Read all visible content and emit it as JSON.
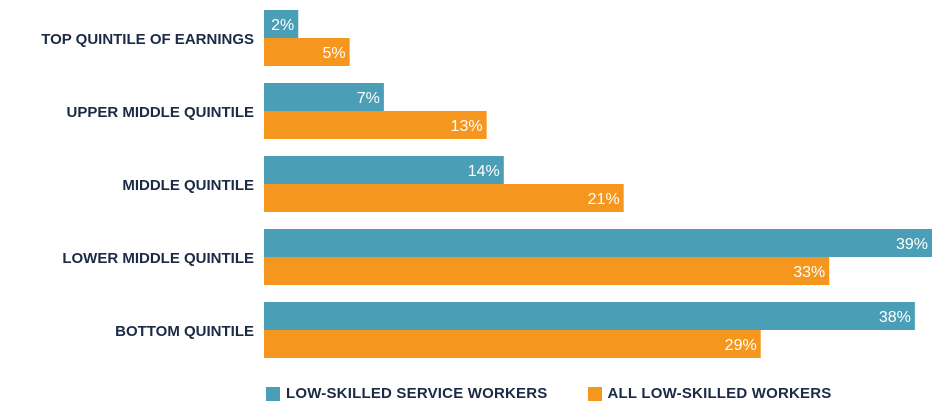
{
  "chart_data": {
    "type": "bar",
    "orientation": "horizontal",
    "categories": [
      "TOP QUINTILE OF EARNINGS",
      "UPPER MIDDLE QUINTILE",
      "MIDDLE QUINTILE",
      "LOWER MIDDLE QUINTILE",
      "BOTTOM QUINTILE"
    ],
    "series": [
      {
        "name": "LOW-SKILLED SERVICE WORKERS",
        "values": [
          2,
          7,
          14,
          39,
          38
        ],
        "labels": [
          "2%",
          "7%",
          "14%",
          "39%",
          "38%"
        ],
        "color": "#4a9fb6"
      },
      {
        "name": "ALL LOW-SKILLED WORKERS",
        "values": [
          5,
          13,
          21,
          33,
          29
        ],
        "labels": [
          "5%",
          "13%",
          "21%",
          "33%",
          "29%"
        ],
        "color": "#f5961e"
      }
    ],
    "xlim": [
      0,
      39
    ],
    "grid": false,
    "legend_position": "bottom"
  }
}
